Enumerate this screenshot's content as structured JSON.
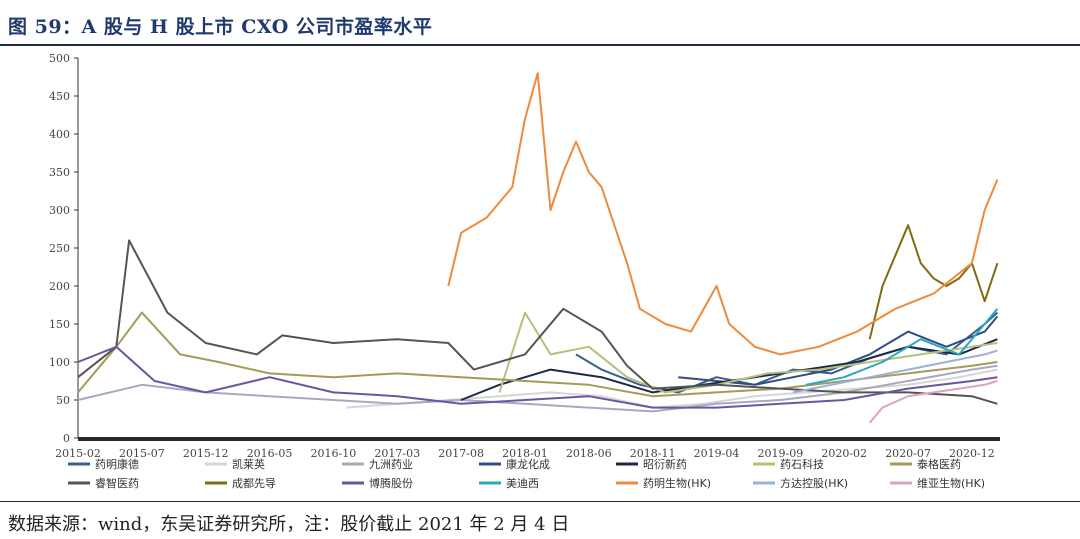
{
  "header": {
    "title": "图 59：A 股与 H 股上市 CXO 公司市盈率水平"
  },
  "footer": {
    "source": "数据来源：wind，东吴证券研究所，注：股价截止 2021 年 2 月 4 日"
  },
  "chart_data": {
    "type": "line",
    "title": "图 59：A 股与 H 股上市 CXO 公司市盈率水平",
    "xlabel": "",
    "ylabel": "",
    "ylim": [
      0,
      500
    ],
    "xlim": [
      "2015-02",
      "2021-02"
    ],
    "y_ticks": [
      0,
      50,
      100,
      150,
      200,
      250,
      300,
      350,
      400,
      450,
      500
    ],
    "x_ticks": [
      "2015-02",
      "2015-07",
      "2015-12",
      "2016-05",
      "2016-10",
      "2017-03",
      "2017-08",
      "2018-01",
      "2018-06",
      "2018-11",
      "2019-04",
      "2019-09",
      "2020-02",
      "2020-07",
      "2020-12"
    ],
    "grid": false,
    "legend_position": "bottom",
    "series": [
      {
        "name": "药明康德",
        "color": "#3b5d8f",
        "x": [
          "2018-05",
          "2018-07",
          "2018-10",
          "2019-01",
          "2019-04",
          "2019-07",
          "2019-10",
          "2020-01",
          "2020-04",
          "2020-07",
          "2020-10",
          "2021-01",
          "2021-02"
        ],
        "values": [
          110,
          90,
          70,
          60,
          80,
          70,
          90,
          85,
          105,
          120,
          110,
          150,
          165
        ]
      },
      {
        "name": "凯莱英",
        "color": "#d6d6d6",
        "x": [
          "2016-11",
          "2017-03",
          "2017-07",
          "2017-11",
          "2018-03",
          "2018-07",
          "2018-11",
          "2019-03",
          "2019-07",
          "2019-11",
          "2020-03",
          "2020-07",
          "2020-11",
          "2021-02"
        ],
        "values": [
          40,
          45,
          50,
          55,
          60,
          55,
          40,
          45,
          55,
          60,
          65,
          70,
          80,
          90
        ]
      },
      {
        "name": "九洲药业",
        "color": "#a8a8bf",
        "x": [
          "2015-02",
          "2015-07",
          "2015-12",
          "2016-05",
          "2016-10",
          "2017-03",
          "2017-08",
          "2018-01",
          "2018-06",
          "2018-11",
          "2019-04",
          "2019-09",
          "2020-02",
          "2020-07",
          "2020-12",
          "2021-02"
        ],
        "values": [
          50,
          70,
          60,
          55,
          50,
          45,
          50,
          45,
          40,
          35,
          45,
          50,
          60,
          75,
          90,
          95
        ]
      },
      {
        "name": "康龙化成",
        "color": "#2f4f80",
        "x": [
          "2019-01",
          "2019-04",
          "2019-07",
          "2019-10",
          "2020-01",
          "2020-04",
          "2020-07",
          "2020-10",
          "2021-01",
          "2021-02"
        ],
        "values": [
          80,
          75,
          70,
          80,
          90,
          110,
          140,
          120,
          140,
          160
        ]
      },
      {
        "name": "昭衍新药",
        "color": "#1c2a4a",
        "x": [
          "2017-08",
          "2017-11",
          "2018-03",
          "2018-07",
          "2018-11",
          "2019-03",
          "2019-07",
          "2019-11",
          "2020-03",
          "2020-07",
          "2020-11",
          "2021-02"
        ],
        "values": [
          50,
          70,
          90,
          80,
          60,
          70,
          80,
          90,
          100,
          120,
          110,
          130
        ]
      },
      {
        "name": "药石科技",
        "color": "#b5c07a",
        "x": [
          "2017-11",
          "2018-01",
          "2018-03",
          "2018-06",
          "2018-09",
          "2018-12",
          "2019-04",
          "2019-08",
          "2019-12",
          "2020-04",
          "2020-08",
          "2020-12",
          "2021-02"
        ],
        "values": [
          60,
          165,
          110,
          120,
          80,
          60,
          70,
          85,
          90,
          100,
          110,
          120,
          125
        ]
      },
      {
        "name": "泰格医药",
        "color": "#a69a5a",
        "x": [
          "2015-02",
          "2015-05",
          "2015-07",
          "2015-10",
          "2016-01",
          "2016-05",
          "2016-10",
          "2017-03",
          "2017-08",
          "2018-01",
          "2018-06",
          "2018-11",
          "2019-04",
          "2019-09",
          "2020-02",
          "2020-07",
          "2020-12",
          "2021-02"
        ],
        "values": [
          60,
          120,
          165,
          110,
          100,
          85,
          80,
          85,
          80,
          75,
          70,
          55,
          60,
          65,
          75,
          85,
          95,
          100
        ]
      },
      {
        "name": "睿智医药",
        "color": "#555555",
        "x": [
          "2015-02",
          "2015-05",
          "2015-06",
          "2015-09",
          "2015-12",
          "2016-04",
          "2016-06",
          "2016-10",
          "2017-03",
          "2017-07",
          "2017-09",
          "2018-01",
          "2018-04",
          "2018-07",
          "2018-09",
          "2018-11",
          "2019-04",
          "2019-09",
          "2020-02",
          "2020-07",
          "2020-12",
          "2021-02"
        ],
        "values": [
          80,
          120,
          260,
          165,
          125,
          110,
          135,
          125,
          130,
          125,
          90,
          110,
          170,
          140,
          95,
          65,
          70,
          65,
          60,
          60,
          55,
          45
        ]
      },
      {
        "name": "成都先导",
        "color": "#7f6c12",
        "x": [
          "2020-04",
          "2020-05",
          "2020-06",
          "2020-07",
          "2020-08",
          "2020-09",
          "2020-10",
          "2020-11",
          "2020-12",
          "2021-01",
          "2021-02"
        ],
        "values": [
          130,
          200,
          240,
          280,
          230,
          210,
          200,
          210,
          230,
          180,
          230
        ]
      },
      {
        "name": "博腾股份",
        "color": "#6a56a0",
        "x": [
          "2015-02",
          "2015-05",
          "2015-08",
          "2015-12",
          "2016-05",
          "2016-10",
          "2017-03",
          "2017-08",
          "2018-01",
          "2018-06",
          "2018-11",
          "2019-04",
          "2019-09",
          "2020-02",
          "2020-07",
          "2020-12",
          "2021-02"
        ],
        "values": [
          100,
          120,
          75,
          60,
          80,
          60,
          55,
          45,
          50,
          55,
          40,
          40,
          45,
          50,
          65,
          75,
          80
        ]
      },
      {
        "name": "美迪西",
        "color": "#2ba6c2",
        "x": [
          "2019-11",
          "2020-02",
          "2020-05",
          "2020-08",
          "2020-11",
          "2021-01",
          "2021-02"
        ],
        "values": [
          70,
          80,
          100,
          130,
          110,
          150,
          170
        ]
      },
      {
        "name": "药明生物(HK)",
        "color": "#ef8a3c",
        "x": [
          "2017-07",
          "2017-08",
          "2017-10",
          "2017-12",
          "2018-01",
          "2018-02",
          "2018-03",
          "2018-04",
          "2018-05",
          "2018-06",
          "2018-07",
          "2018-09",
          "2018-10",
          "2018-12",
          "2019-02",
          "2019-04",
          "2019-05",
          "2019-07",
          "2019-09",
          "2019-12",
          "2020-03",
          "2020-06",
          "2020-09",
          "2020-12",
          "2021-01",
          "2021-02"
        ],
        "values": [
          200,
          270,
          290,
          330,
          420,
          480,
          300,
          350,
          390,
          350,
          330,
          230,
          170,
          150,
          140,
          200,
          150,
          120,
          110,
          120,
          140,
          170,
          190,
          230,
          300,
          340
        ]
      },
      {
        "name": "方达控股(HK)",
        "color": "#9ab1d8",
        "x": [
          "2019-10",
          "2020-01",
          "2020-04",
          "2020-07",
          "2020-10",
          "2021-01",
          "2021-02"
        ],
        "values": [
          60,
          70,
          80,
          90,
          100,
          110,
          115
        ]
      },
      {
        "name": "维亚生物(HK)",
        "color": "#dca6b8",
        "x": [
          "2020-04",
          "2020-05",
          "2020-07",
          "2020-09",
          "2020-11",
          "2021-01",
          "2021-02"
        ],
        "values": [
          20,
          40,
          55,
          60,
          65,
          70,
          75
        ]
      }
    ]
  }
}
